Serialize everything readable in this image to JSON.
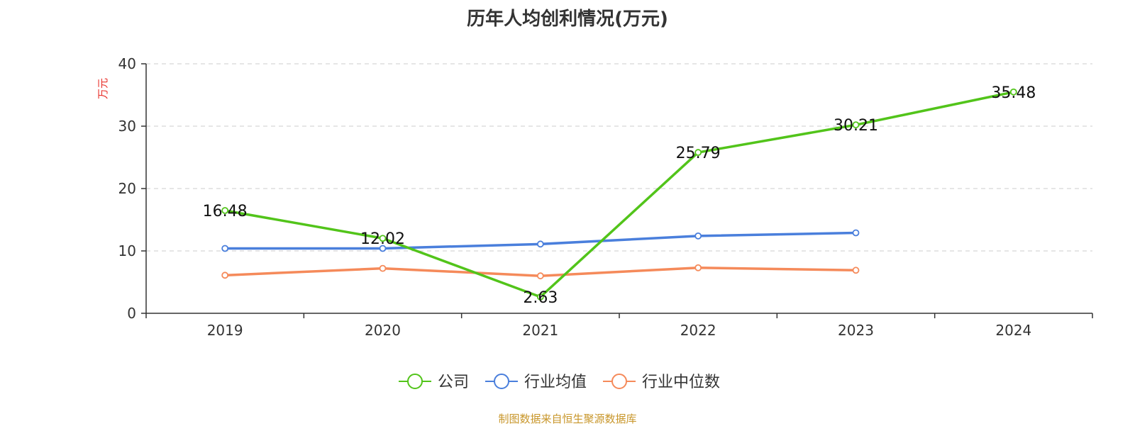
{
  "chart_data": {
    "type": "line",
    "title": "历年人均创利情况(万元)",
    "ylabel": "万元",
    "xlabel": "",
    "categories": [
      "2019",
      "2020",
      "2021",
      "2022",
      "2023",
      "2024"
    ],
    "ylim": [
      0,
      40
    ],
    "yticks": [
      0,
      10,
      20,
      30,
      40
    ],
    "grid": true,
    "legend_position": "bottom",
    "series": [
      {
        "name": "公司",
        "color": "#52c41a",
        "values": [
          16.48,
          12.02,
          2.63,
          25.79,
          30.21,
          35.48
        ],
        "show_labels": true
      },
      {
        "name": "行业均值",
        "color": "#4a7fdc",
        "values": [
          10.4,
          10.4,
          11.1,
          12.4,
          12.9,
          null
        ],
        "show_labels": false
      },
      {
        "name": "行业中位数",
        "color": "#f58a5a",
        "values": [
          6.1,
          7.2,
          6.0,
          7.3,
          6.9,
          null
        ],
        "show_labels": false
      }
    ]
  },
  "source": "制图数据来自恒生聚源数据库"
}
